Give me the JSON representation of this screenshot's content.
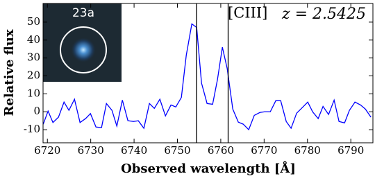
{
  "chart_data": {
    "type": "line",
    "x_label": "Observed wavelength [Å]",
    "y_label": "Relative flux",
    "annotations": [
      "[CIII]",
      "z = 2.5425"
    ],
    "inset_label": "23a",
    "x": [
      6719.04,
      6720.16,
      6721.28,
      6722.56,
      6723.84,
      6724.97,
      6726.25,
      6727.53,
      6728.81,
      6729.93,
      6731.21,
      6732.49,
      6733.62,
      6734.9,
      6736.02,
      6737.3,
      6738.58,
      6739.86,
      6740.98,
      6742.26,
      6743.54,
      6744.67,
      6745.95,
      6747.23,
      6748.51,
      6749.63,
      6750.91,
      6752.04,
      6753.32,
      6754.44,
      6755.56,
      6756.84,
      6758.12,
      6759.24,
      6760.37,
      6761.49,
      6762.77,
      6764.05,
      6765.17,
      6766.45,
      6767.73,
      6769.02,
      6770.14,
      6771.42,
      6772.7,
      6773.82,
      6775.1,
      6776.22,
      6777.5,
      6778.79,
      6780.07,
      6781.19,
      6782.47,
      6783.59,
      6784.87,
      6786.15,
      6787.28,
      6788.56,
      6789.68,
      6790.96,
      6792.24,
      6793.36,
      6794.64
    ],
    "series": [
      {
        "color": "#0000ff",
        "values": [
          -6.9,
          0.4,
          -6,
          -3,
          5.4,
          0.8,
          7,
          -6,
          -3.8,
          -1,
          -8.5,
          -8.8,
          4.6,
          0.8,
          -8,
          6.5,
          -5,
          -5.4,
          -5,
          -9.2,
          4.6,
          1.9,
          7,
          -2.3,
          3.8,
          2.7,
          8,
          31.5,
          49,
          47,
          16,
          4.6,
          4.2,
          18,
          36,
          24,
          1.5,
          -5.8,
          -6.9,
          -10,
          -2,
          -0.4,
          0,
          0,
          6.2,
          6.2,
          -5.4,
          -9.2,
          -0.8,
          2.3,
          5.4,
          0,
          -3.8,
          3,
          -1.5,
          6.5,
          -5.4,
          -6.2,
          0.8,
          5.4,
          3.8,
          1.5,
          -3
        ]
      }
    ],
    "vlines": [
      6754.4,
      6761.7
    ],
    "xlim": [
      6719,
      6795.1
    ],
    "ylim": [
      -17.3,
      60.4
    ],
    "xticks": [
      6720,
      6730,
      6740,
      6750,
      6760,
      6770,
      6780,
      6790
    ],
    "yticks": [
      -10,
      0,
      10,
      20,
      30,
      40,
      50
    ]
  }
}
